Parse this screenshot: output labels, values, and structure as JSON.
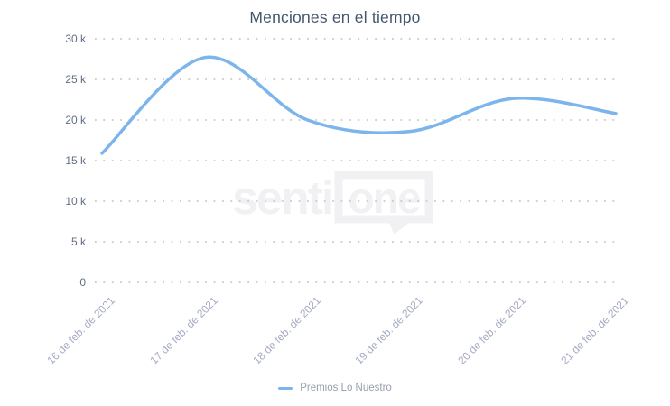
{
  "title": "Menciones en el tiempo",
  "legend": {
    "series_label": "Premios Lo Nuestro"
  },
  "watermark": {
    "text_left": "senti",
    "text_bubble": "one"
  },
  "colors": {
    "line": "#7cb5ec",
    "title": "#44576e",
    "y_label": "#606e83",
    "x_label": "#a6abc4",
    "grid_dot": "#c9c9c9",
    "legend_text": "#99a0ac",
    "watermark": "#f1f1f4"
  },
  "chart_data": {
    "type": "line",
    "curve": "spline",
    "title": "Menciones en el tiempo",
    "xlabel": "",
    "ylabel": "",
    "x": [
      "16 de feb. de 2021",
      "17 de feb. de 2021",
      "18 de feb. de 2021",
      "19 de feb. de 2021",
      "20 de feb. de 2021",
      "21 de feb. de 2021"
    ],
    "series": [
      {
        "name": "Premios Lo Nuestro",
        "values": [
          15900,
          27700,
          20000,
          18600,
          22650,
          20800
        ]
      }
    ],
    "ylim": [
      0,
      30000
    ],
    "y_ticks": [
      "30 k",
      "25 k",
      "20 k",
      "15 k",
      "10 k",
      "5 k",
      "0"
    ],
    "y_tick_values": [
      30000,
      25000,
      20000,
      15000,
      10000,
      5000,
      0
    ],
    "grid": "horizontal-dotted",
    "legend_position": "bottom-center"
  }
}
